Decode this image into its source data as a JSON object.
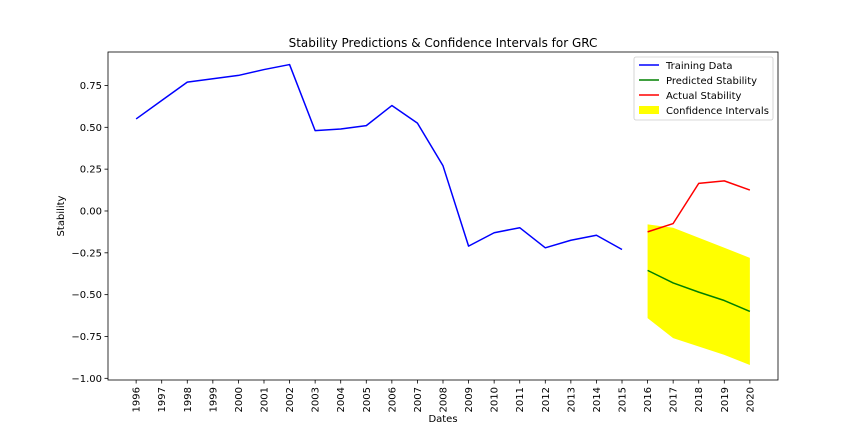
{
  "chart_data": {
    "type": "line",
    "title": "Stability Predictions & Confidence Intervals for GRC",
    "xlabel": "Dates",
    "ylabel": "Stability",
    "xlim": [
      1994.9,
      2021.1
    ],
    "ylim": [
      -1.01,
      0.95
    ],
    "yticks": [
      0.75,
      0.5,
      0.25,
      0.0,
      -0.25,
      -0.5,
      -0.75,
      -1.0
    ],
    "ytick_labels": [
      "0.75",
      "0.50",
      "0.25",
      "0.00",
      "−0.25",
      "−0.50",
      "−0.75",
      "−1.00"
    ],
    "xticks": [
      "1996",
      "1997",
      "1998",
      "1999",
      "2000",
      "2001",
      "2002",
      "2003",
      "2004",
      "2005",
      "2006",
      "2007",
      "2008",
      "2009",
      "2010",
      "2011",
      "2012",
      "2013",
      "2014",
      "2015",
      "2016",
      "2017",
      "2018",
      "2019",
      "2020"
    ],
    "legend_position": "top-right",
    "grid": false,
    "series": [
      {
        "name": "Training Data",
        "color": "#0000ff",
        "x": [
          1996,
          1997,
          1998,
          1999,
          2000,
          2001,
          2002,
          2003,
          2004,
          2005,
          2006,
          2007,
          2008,
          2009,
          2010,
          2011,
          2012,
          2013,
          2014,
          2015
        ],
        "values": [
          0.55,
          0.66,
          0.77,
          0.79,
          0.81,
          0.845,
          0.875,
          0.48,
          0.49,
          0.51,
          0.63,
          0.525,
          0.27,
          -0.21,
          -0.13,
          -0.1,
          -0.22,
          -0.175,
          -0.145,
          -0.23
        ]
      },
      {
        "name": "Predicted Stability",
        "color": "#008000",
        "x": [
          2016,
          2017,
          2018,
          2019,
          2020
        ],
        "values": [
          -0.355,
          -0.43,
          -0.485,
          -0.535,
          -0.6
        ]
      },
      {
        "name": "Actual Stability",
        "color": "#ff0000",
        "x": [
          2016,
          2017,
          2018,
          2019,
          2020
        ],
        "values": [
          -0.125,
          -0.075,
          0.165,
          0.18,
          0.125
        ]
      }
    ],
    "band": {
      "name": "Confidence Intervals",
      "color": "#ffff00",
      "x": [
        2016,
        2017,
        2018,
        2019,
        2020
      ],
      "upper": [
        -0.08,
        -0.1,
        -0.16,
        -0.22,
        -0.28
      ],
      "lower": [
        -0.64,
        -0.76,
        -0.81,
        -0.86,
        -0.92
      ]
    }
  }
}
